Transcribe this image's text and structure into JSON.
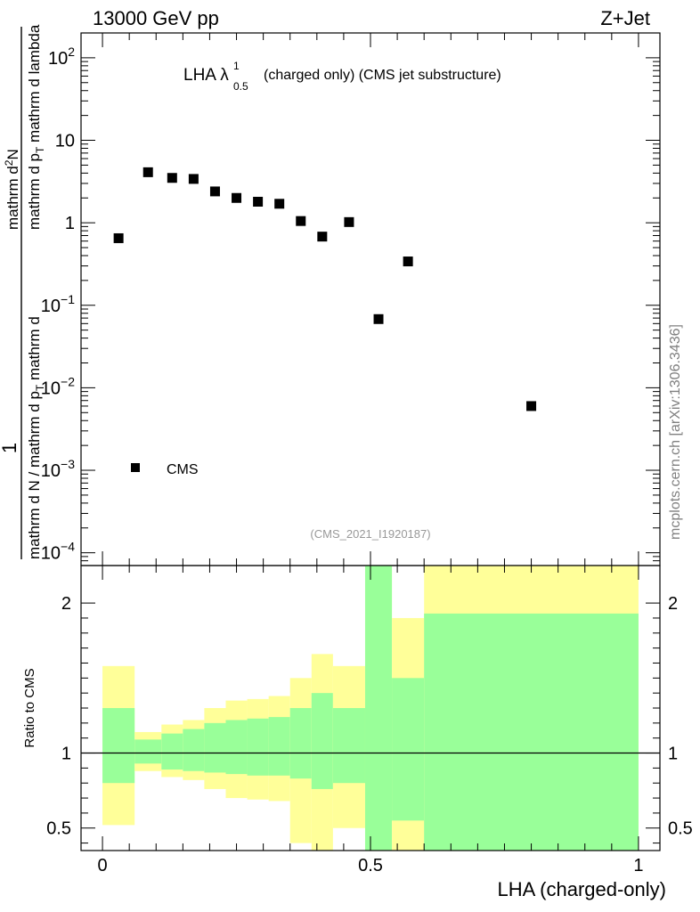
{
  "header": {
    "energy_label": "13000 GeV pp",
    "process_label": "Z+Jet"
  },
  "side_label": "mcplots.cern.ch [arXiv:1306.3436]",
  "colors": {
    "inner_band": "#99ff99",
    "outer_band": "#ffff99",
    "marker": "#000000",
    "frame": "#000000"
  },
  "chart_data": [
    {
      "type": "scatter",
      "title_main": "LHA λ",
      "title_sup": "1",
      "title_sub": "0.5",
      "title_rest": " (charged only) (CMS jet substructure)",
      "analysis_tag": "(CMS_2021_I1920187)",
      "ylabel_numerator": "1",
      "ylabel_denominator": "mathrm d N / mathrm d p",
      "ylabel_rest_num": "mathrm d",
      "ylabel_rest_sub": "T",
      "ylabel_line2": "mathrm d p",
      "ylabel_line2_sub": "T",
      "ylabel_line2_rest": " mathrm d lambda",
      "ylabel_top_line": "mathrm d",
      "ylabel_top_sup": "2",
      "ylabel_top_rest": "N",
      "yscale": "log",
      "ylim": [
        7e-05,
        200
      ],
      "xlim": [
        -0.04,
        1.04
      ],
      "series": [
        {
          "name": "CMS",
          "x": [
            0.03,
            0.085,
            0.13,
            0.17,
            0.21,
            0.25,
            0.29,
            0.33,
            0.37,
            0.41,
            0.46,
            0.515,
            0.57,
            0.8
          ],
          "y": [
            0.65,
            4.1,
            3.5,
            3.4,
            2.4,
            2.0,
            1.8,
            1.7,
            1.05,
            0.68,
            1.02,
            0.068,
            0.34,
            0.006
          ]
        }
      ],
      "yticks_major": [
        {
          "base": "10",
          "exp": "2",
          "value": 100
        },
        {
          "base": "10",
          "exp": "",
          "value": 10
        },
        {
          "base": "1",
          "exp": "",
          "value": 1
        },
        {
          "base": "10",
          "exp": "−1",
          "value": 0.1
        },
        {
          "base": "10",
          "exp": "−2",
          "value": 0.01
        },
        {
          "base": "10",
          "exp": "−3",
          "value": 0.001
        },
        {
          "base": "10",
          "exp": "−4",
          "value": 0.0001
        }
      ],
      "legend": {
        "entry": "CMS",
        "placement": "lower-left"
      }
    },
    {
      "type": "area",
      "ylabel": "Ratio to CMS",
      "xlabel": "LHA (charged-only)",
      "ylim": [
        0.35,
        2.25
      ],
      "xlim": [
        -0.04,
        1.04
      ],
      "reference_line": 1,
      "yticks": [
        "0.5",
        "1",
        "2"
      ],
      "ytick_values": [
        0.5,
        1,
        2
      ],
      "xticks": [
        "0",
        "0.5",
        "1"
      ],
      "xtick_values": [
        0,
        0.5,
        1
      ],
      "bins": [
        {
          "lo": 0.0,
          "hi": 0.06,
          "inner": [
            0.8,
            1.3
          ],
          "outer": [
            0.52,
            1.58
          ]
        },
        {
          "lo": 0.06,
          "hi": 0.11,
          "inner": [
            0.93,
            1.09
          ],
          "outer": [
            0.88,
            1.14
          ]
        },
        {
          "lo": 0.11,
          "hi": 0.15,
          "inner": [
            0.89,
            1.13
          ],
          "outer": [
            0.84,
            1.19
          ]
        },
        {
          "lo": 0.15,
          "hi": 0.19,
          "inner": [
            0.88,
            1.16
          ],
          "outer": [
            0.82,
            1.22
          ]
        },
        {
          "lo": 0.19,
          "hi": 0.23,
          "inner": [
            0.87,
            1.2
          ],
          "outer": [
            0.76,
            1.3
          ]
        },
        {
          "lo": 0.23,
          "hi": 0.27,
          "inner": [
            0.86,
            1.22
          ],
          "outer": [
            0.7,
            1.35
          ]
        },
        {
          "lo": 0.27,
          "hi": 0.31,
          "inner": [
            0.85,
            1.23
          ],
          "outer": [
            0.69,
            1.36
          ]
        },
        {
          "lo": 0.31,
          "hi": 0.35,
          "inner": [
            0.85,
            1.24
          ],
          "outer": [
            0.68,
            1.38
          ]
        },
        {
          "lo": 0.35,
          "hi": 0.39,
          "inner": [
            0.83,
            1.3
          ],
          "outer": [
            0.4,
            1.5
          ]
        },
        {
          "lo": 0.39,
          "hi": 0.43,
          "inner": [
            0.76,
            1.4
          ],
          "outer": [
            0.3,
            1.66
          ]
        },
        {
          "lo": 0.43,
          "hi": 0.49,
          "inner": [
            0.8,
            1.3
          ],
          "outer": [
            0.5,
            1.58
          ]
        },
        {
          "lo": 0.49,
          "hi": 0.54,
          "inner": [
            0.3,
            3.0
          ],
          "outer": [
            0.3,
            3.0
          ]
        },
        {
          "lo": 0.54,
          "hi": 0.6,
          "inner": [
            0.55,
            1.5
          ],
          "outer": [
            0.3,
            1.9
          ]
        },
        {
          "lo": 0.6,
          "hi": 1.0,
          "inner": [
            0.3,
            1.93
          ],
          "outer": [
            0.3,
            3.0
          ]
        }
      ]
    }
  ]
}
